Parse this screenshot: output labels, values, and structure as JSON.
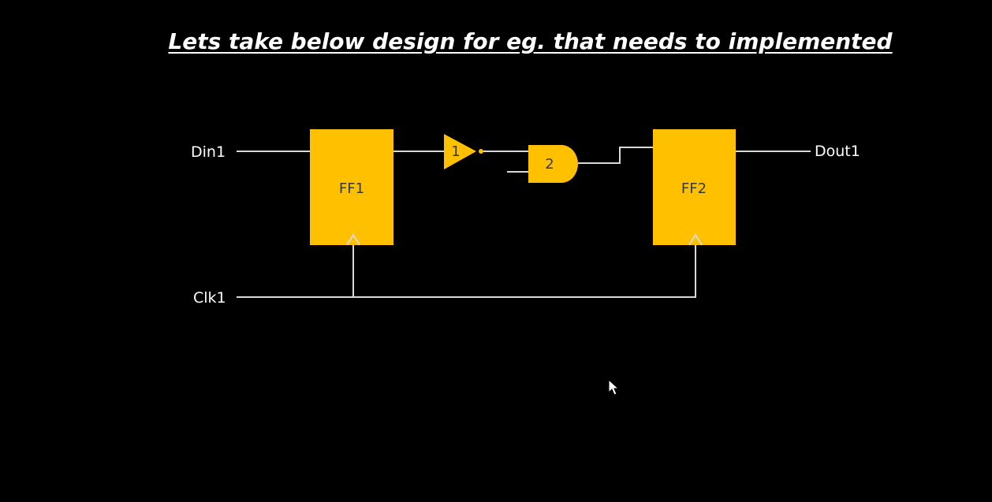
{
  "title": "Lets take below design for eg. that needs to implemented",
  "colors": {
    "background": "#000000",
    "block_fill": "#ffc000",
    "wire": "#d9d9d9",
    "text": "#ffffff"
  },
  "ports": {
    "din": "Din1",
    "dout": "Dout1",
    "clk": "Clk1"
  },
  "blocks": {
    "ff1": "FF1",
    "ff2": "FF2",
    "inverter": "1",
    "and_gate": "2"
  },
  "icons": {
    "cursor": "mouse-pointer-icon"
  }
}
